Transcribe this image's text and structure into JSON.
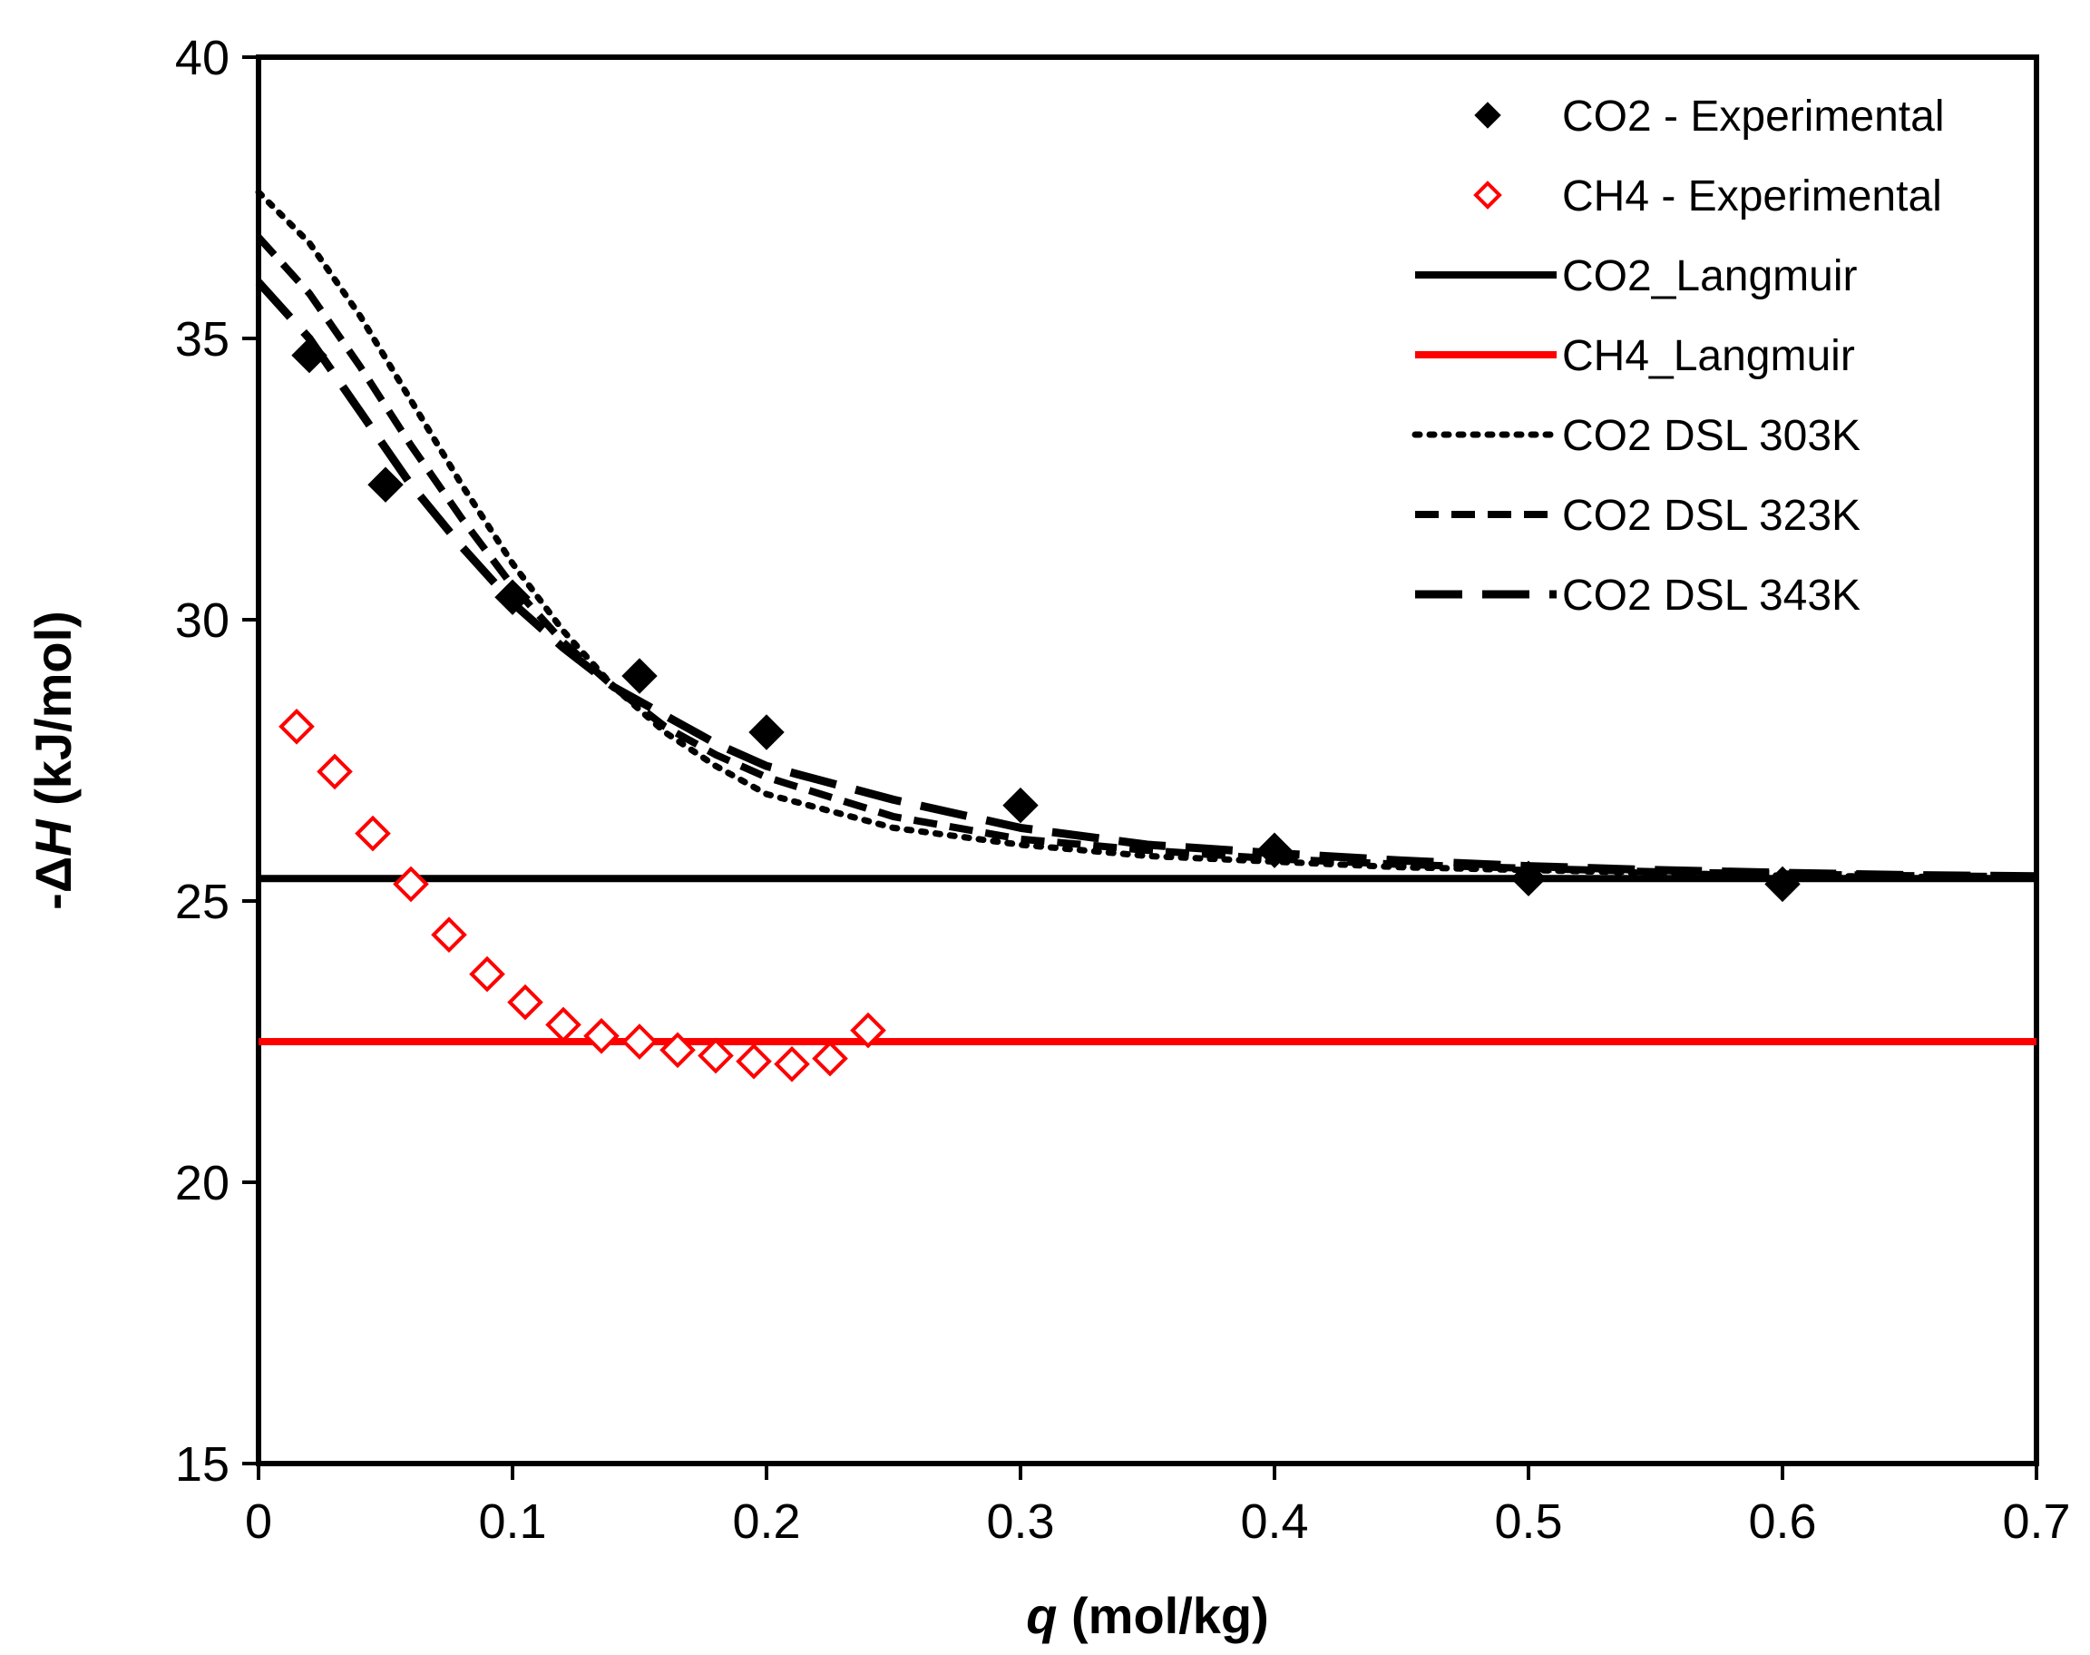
{
  "chart_data": {
    "type": "line",
    "xlabel_var": "q",
    "xlabel_unit": " (mol/kg)",
    "ylabel_prefix": "-Δ",
    "ylabel_var": "H",
    "ylabel_unit": " (kJ/mol)",
    "xlim": [
      0,
      0.7
    ],
    "ylim": [
      15,
      40
    ],
    "xticks": [
      0,
      0.1,
      0.2,
      0.3,
      0.4,
      0.5,
      0.6,
      0.7
    ],
    "xtick_labels": [
      "0",
      "0.1",
      "0.2",
      "0.3",
      "0.4",
      "0.5",
      "0.6",
      "0.7"
    ],
    "yticks": [
      15,
      20,
      25,
      30,
      35,
      40
    ],
    "ytick_labels": [
      "15",
      "20",
      "25",
      "30",
      "35",
      "40"
    ],
    "grid": false,
    "legend_position": "top-right",
    "series": [
      {
        "name": "CO2 - Experimental",
        "kind": "scatter",
        "marker": "diamond-filled",
        "color": "#000000",
        "x": [
          0.02,
          0.05,
          0.1,
          0.15,
          0.2,
          0.3,
          0.4,
          0.5,
          0.6
        ],
        "y": [
          34.7,
          32.4,
          30.4,
          29.0,
          28.0,
          26.7,
          25.9,
          25.4,
          25.3
        ]
      },
      {
        "name": "CH4 - Experimental",
        "kind": "scatter",
        "marker": "diamond-open",
        "color": "#ff0000",
        "x": [
          0.015,
          0.03,
          0.045,
          0.06,
          0.075,
          0.09,
          0.105,
          0.12,
          0.135,
          0.15,
          0.165,
          0.18,
          0.195,
          0.21,
          0.225,
          0.24
        ],
        "y": [
          28.1,
          27.3,
          26.2,
          25.3,
          24.4,
          23.7,
          23.2,
          22.8,
          22.6,
          22.5,
          22.35,
          22.25,
          22.15,
          22.1,
          22.2,
          22.7
        ]
      },
      {
        "name": "CO2_Langmuir",
        "kind": "line",
        "dash": "solid",
        "color": "#000000",
        "x": [
          0,
          0.7
        ],
        "y": [
          25.4,
          25.4
        ]
      },
      {
        "name": "CH4_Langmuir",
        "kind": "line",
        "dash": "solid",
        "color": "#ff0000",
        "x": [
          0,
          0.7
        ],
        "y": [
          22.5,
          22.5
        ]
      },
      {
        "name": "CO2 DSL 303K",
        "kind": "line",
        "dash": "dotted",
        "color": "#000000",
        "x": [
          0,
          0.02,
          0.04,
          0.06,
          0.08,
          0.1,
          0.12,
          0.14,
          0.16,
          0.18,
          0.2,
          0.25,
          0.3,
          0.35,
          0.4,
          0.45,
          0.5,
          0.55,
          0.6,
          0.65,
          0.7
        ],
        "y": [
          37.6,
          36.7,
          35.4,
          33.9,
          32.4,
          31.0,
          29.8,
          28.8,
          28.0,
          27.4,
          26.9,
          26.3,
          26.0,
          25.8,
          25.7,
          25.6,
          25.55,
          25.5,
          25.45,
          25.43,
          25.42
        ]
      },
      {
        "name": "CO2 DSL 323K",
        "kind": "line",
        "dash": "dashed",
        "color": "#000000",
        "x": [
          0,
          0.02,
          0.04,
          0.06,
          0.08,
          0.1,
          0.12,
          0.14,
          0.16,
          0.18,
          0.2,
          0.25,
          0.3,
          0.35,
          0.4,
          0.45,
          0.5,
          0.55,
          0.6,
          0.65,
          0.7
        ],
        "y": [
          36.8,
          35.8,
          34.5,
          33.1,
          31.8,
          30.6,
          29.6,
          28.8,
          28.1,
          27.6,
          27.2,
          26.5,
          26.1,
          25.9,
          25.75,
          25.65,
          25.58,
          25.52,
          25.48,
          25.45,
          25.43
        ]
      },
      {
        "name": "CO2 DSL 343K",
        "kind": "line",
        "dash": "long-dashed",
        "color": "#000000",
        "x": [
          0,
          0.02,
          0.04,
          0.06,
          0.08,
          0.1,
          0.12,
          0.14,
          0.16,
          0.18,
          0.2,
          0.25,
          0.3,
          0.35,
          0.4,
          0.45,
          0.5,
          0.55,
          0.6,
          0.65,
          0.7
        ],
        "y": [
          36.0,
          35.0,
          33.7,
          32.4,
          31.3,
          30.3,
          29.5,
          28.8,
          28.3,
          27.8,
          27.4,
          26.8,
          26.3,
          26.0,
          25.85,
          25.72,
          25.62,
          25.55,
          25.5,
          25.46,
          25.44
        ]
      }
    ]
  }
}
